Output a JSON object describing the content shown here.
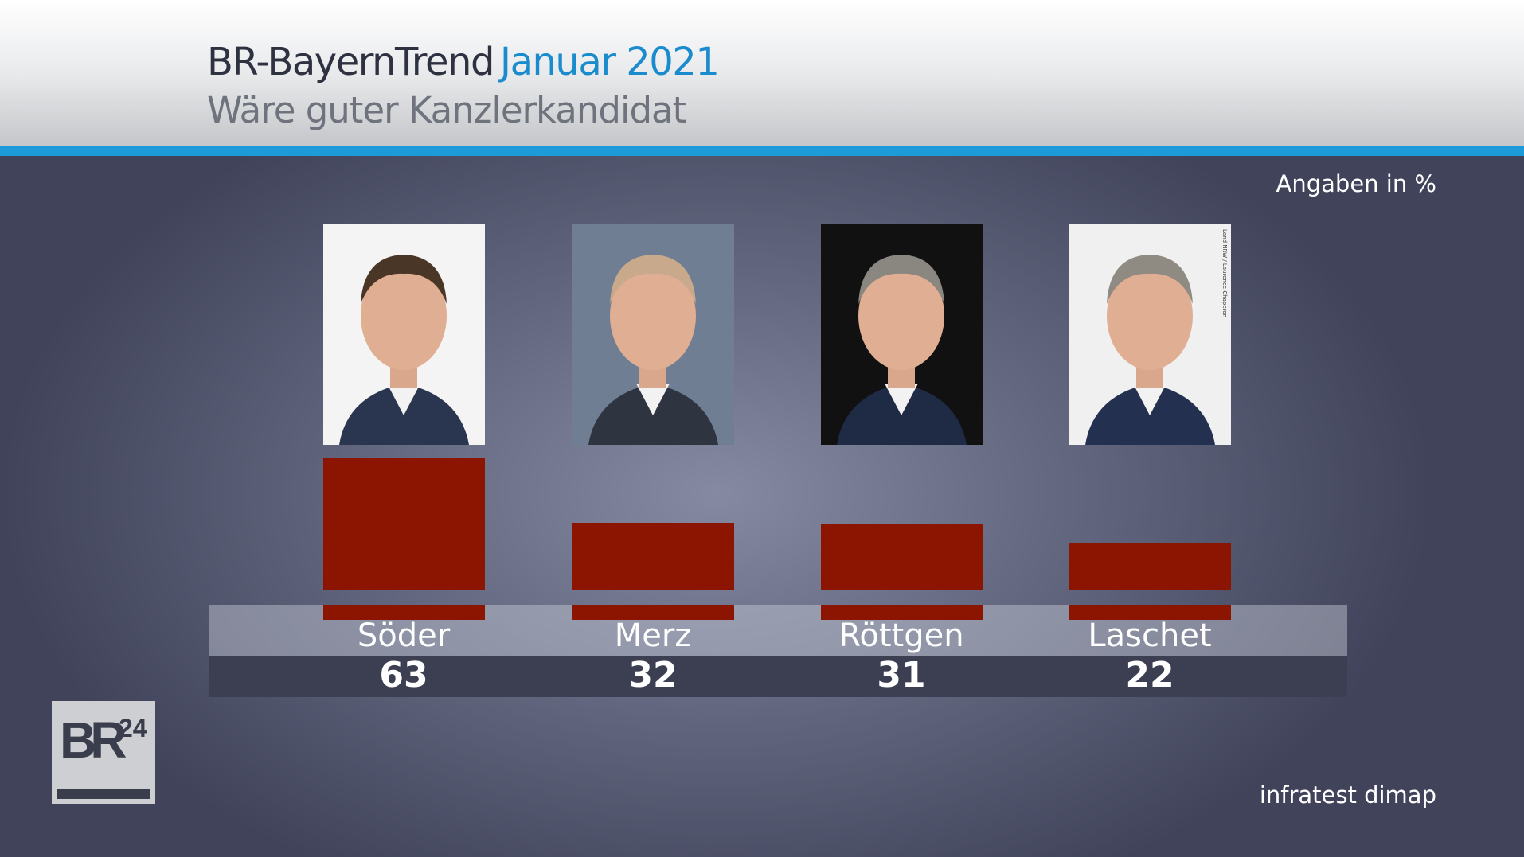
{
  "header": {
    "title": "BR-BayernTrend",
    "title_accent": "Januar 2021",
    "subtitle": "Wäre guter Kanzlerkandidat"
  },
  "unit_note": "Angaben in %",
  "source": "infratest dimap",
  "logo": {
    "text": "BR",
    "superscript": "24"
  },
  "photo_credit": "Land NRW / Laurence Chaperon",
  "colors": {
    "bar": "#8b1500",
    "accent": "#1a8bcc",
    "blue_bar": "#1c9bd8"
  },
  "chart_data": {
    "type": "bar",
    "title": "Wäre guter Kanzlerkandidat",
    "categories": [
      "Söder",
      "Merz",
      "Röttgen",
      "Laschet"
    ],
    "values": [
      63,
      32,
      31,
      22
    ],
    "unit": "%",
    "ylim": [
      0,
      100
    ]
  }
}
